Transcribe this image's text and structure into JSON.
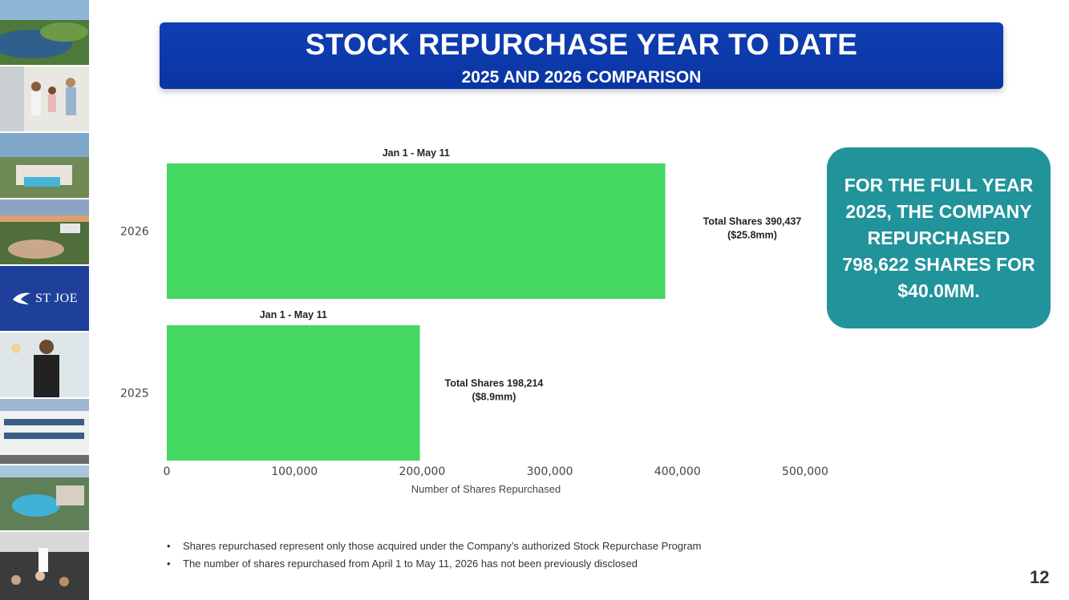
{
  "banner": {
    "title": "STOCK REPURCHASE YEAR TO DATE",
    "subtitle": "2025 AND 2026 COMPARISON"
  },
  "sidebar": {
    "logo_text": "ST JOE",
    "tiles": [
      "golf-course-photo",
      "family-photo",
      "resort-pool-photo",
      "lake-homes-photo",
      "st-joe-logo",
      "staff-photo",
      "office-building-photo",
      "waterpark-photo",
      "event-crowd-photo"
    ]
  },
  "chart_data": {
    "type": "bar",
    "orientation": "horizontal",
    "categories": [
      "2026",
      "2025"
    ],
    "values": [
      390437,
      198214
    ],
    "bar_color": "#44d762",
    "period_labels": [
      "Jan 1 - May 11",
      "Jan 1 - May 11"
    ],
    "annotations": [
      [
        "Total Shares 390,437",
        "($25.8mm)"
      ],
      [
        "Total Shares 198,214",
        "($8.9mm)"
      ]
    ],
    "xlabel": "Number of Shares Repurchased",
    "xlim": [
      0,
      500000
    ],
    "xticks": [
      "0",
      "100,000",
      "200,000",
      "300,000",
      "400,000",
      "500,000"
    ],
    "grid": false,
    "legend": "none"
  },
  "callout": {
    "text": "FOR THE FULL YEAR 2025, THE COMPANY REPURCHASED 798,622 SHARES FOR $40.0MM.",
    "color": "#21939b"
  },
  "notes": [
    "Shares repurchased represent only those acquired under the Company’s authorized Stock Repurchase Program",
    "The number of shares repurchased from April 1 to May 11, 2026 has not been previously disclosed"
  ],
  "page_number": "12"
}
